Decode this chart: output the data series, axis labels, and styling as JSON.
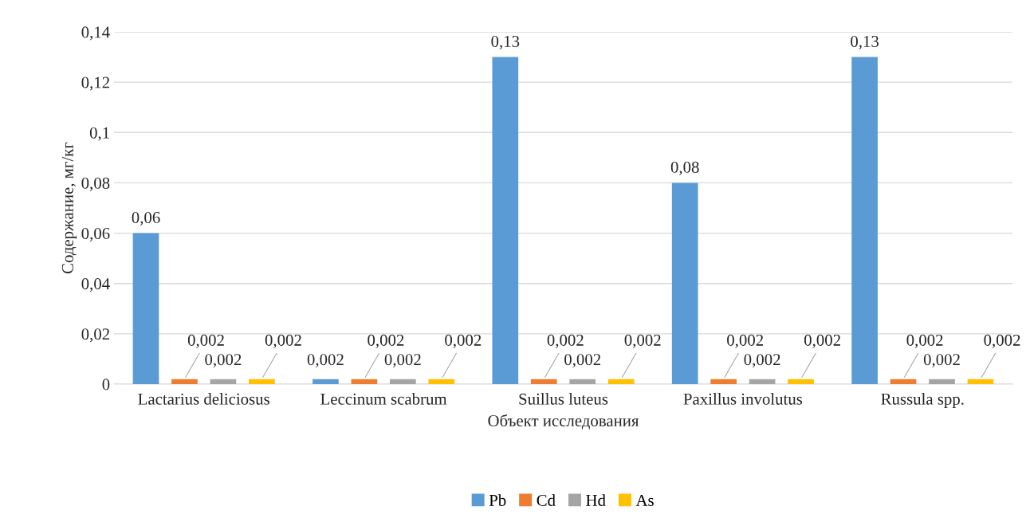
{
  "chart_data": {
    "type": "bar",
    "xlabel": "Объект исследования",
    "ylabel": "Содержание, мг/кг",
    "categories": [
      "Lactarius deliciosus",
      "Leccinum scabrum",
      "Suillus luteus",
      "Paxillus involutus",
      "Russula spp."
    ],
    "series": [
      {
        "name": "Pb",
        "color": "#5b9bd5",
        "values": [
          0.06,
          0.002,
          0.13,
          0.08,
          0.13
        ],
        "value_labels": [
          "0,06",
          "0,002",
          "0,13",
          "0,08",
          "0,13"
        ]
      },
      {
        "name": "Cd",
        "color": "#ed7d31",
        "values": [
          0.002,
          0.002,
          0.002,
          0.002,
          0.002
        ],
        "value_labels": [
          "0,002",
          "0,002",
          "0,002",
          "0,002",
          "0,002"
        ]
      },
      {
        "name": "Hd",
        "color": "#a5a5a5",
        "values": [
          0.002,
          0.002,
          0.002,
          0.002,
          0.002
        ],
        "value_labels": [
          "0,002",
          "0,002",
          "0,002",
          "0,002",
          "0,002"
        ]
      },
      {
        "name": "As",
        "color": "#ffc000",
        "values": [
          0.002,
          0.002,
          0.002,
          0.002,
          0.002
        ],
        "value_labels": [
          "0,002",
          "0,002",
          "0,002",
          "0,002",
          "0,002"
        ]
      }
    ],
    "ylim": [
      0,
      0.14
    ],
    "yticks": [
      {
        "value": 0,
        "label": "0"
      },
      {
        "value": 0.02,
        "label": "0,02"
      },
      {
        "value": 0.04,
        "label": "0,04"
      },
      {
        "value": 0.06,
        "label": "0,06"
      },
      {
        "value": 0.08,
        "label": "0,08"
      },
      {
        "value": 0.1,
        "label": "0,1"
      },
      {
        "value": 0.12,
        "label": "0,12"
      },
      {
        "value": 0.14,
        "label": "0,14"
      }
    ],
    "grid": "y",
    "legend": "bottom"
  }
}
